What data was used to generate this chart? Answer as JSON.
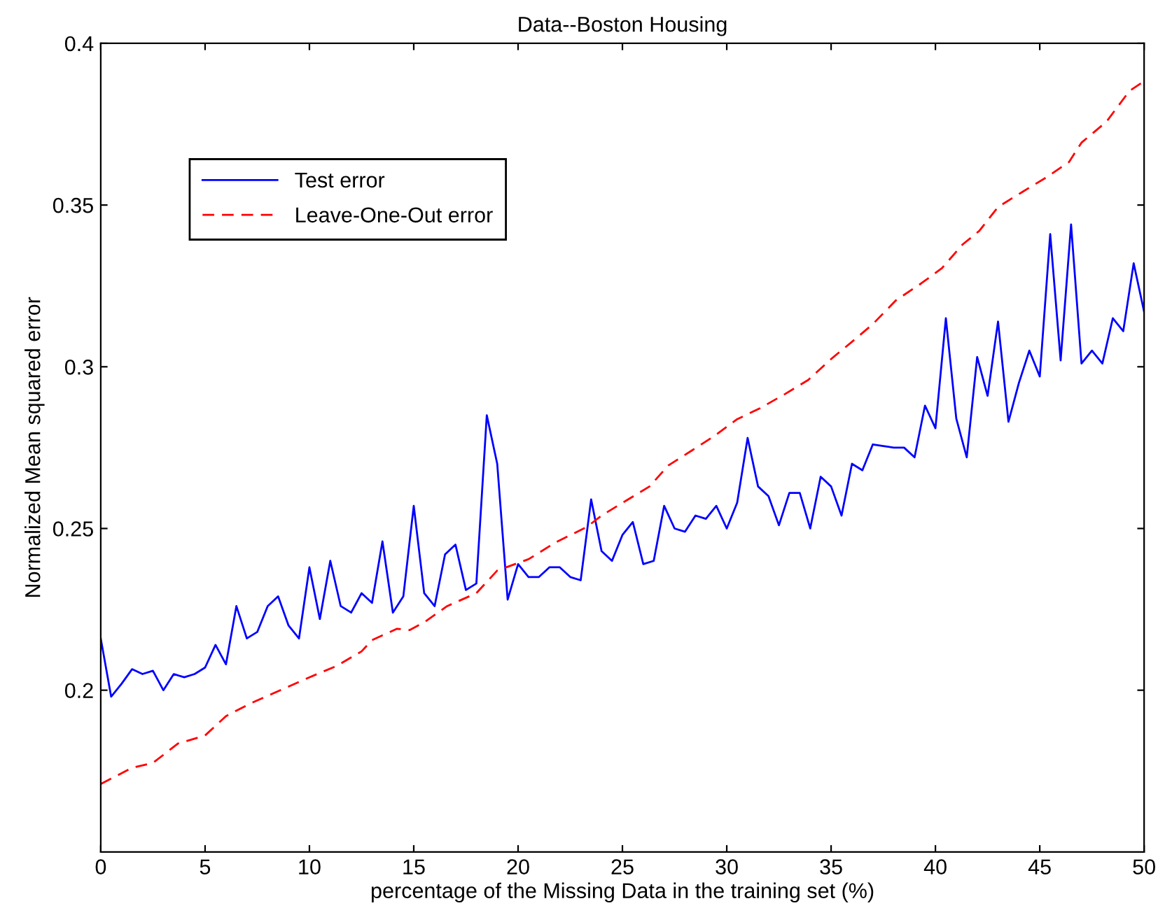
{
  "chart_data": {
    "type": "line",
    "title": "Data--Boston Housing",
    "xlabel": "percentage of the Missing Data in the training set (%)",
    "ylabel": "Normalized Mean squared error",
    "xlim": [
      0,
      50
    ],
    "ylim": [
      0.15,
      0.4
    ],
    "xticks": [
      0,
      5,
      10,
      15,
      20,
      25,
      30,
      35,
      40,
      45,
      50
    ],
    "yticks": [
      0.2,
      0.25,
      0.3,
      0.35,
      0.4
    ],
    "grid": false,
    "legend": "top left",
    "marker": "none",
    "series": [
      {
        "name": "Test error",
        "color": "#0000ff",
        "line_style": "solid",
        "x": [
          0,
          0.5,
          1,
          1.5,
          2,
          2.5,
          3,
          3.5,
          4,
          4.5,
          5,
          5.5,
          6,
          6.5,
          7,
          7.5,
          8,
          8.5,
          9,
          9.5,
          10,
          10.5,
          11,
          11.5,
          12,
          12.5,
          13,
          13.5,
          14,
          14.5,
          15,
          15.5,
          16,
          16.5,
          17,
          17.5,
          18,
          18.5,
          19,
          19.5,
          20,
          20.5,
          21,
          21.5,
          22,
          22.5,
          23,
          23.5,
          24,
          24.5,
          25,
          25.5,
          26,
          26.5,
          27,
          27.5,
          28,
          28.5,
          29,
          29.5,
          30,
          30.5,
          31,
          31.5,
          32,
          32.5,
          33,
          33.5,
          34,
          34.5,
          35,
          35.5,
          36,
          36.5,
          37,
          37.5,
          38,
          38.5,
          39,
          39.5,
          40,
          40.5,
          41,
          41.5,
          42,
          42.5,
          43,
          43.5,
          44,
          44.5,
          45,
          45.5,
          46,
          46.5,
          47,
          47.5,
          48,
          48.5,
          49,
          49.5,
          50
        ],
        "values": [
          0.216,
          0.198,
          0.202,
          0.2065,
          0.205,
          0.206,
          0.2,
          0.205,
          0.204,
          0.205,
          0.207,
          0.214,
          0.208,
          0.226,
          0.216,
          0.218,
          0.226,
          0.229,
          0.22,
          0.216,
          0.238,
          0.222,
          0.24,
          0.226,
          0.224,
          0.23,
          0.227,
          0.246,
          0.224,
          0.229,
          0.257,
          0.23,
          0.226,
          0.242,
          0.245,
          0.231,
          0.233,
          0.285,
          0.27,
          0.228,
          0.239,
          0.235,
          0.235,
          0.238,
          0.238,
          0.235,
          0.234,
          0.259,
          0.243,
          0.24,
          0.248,
          0.252,
          0.239,
          0.24,
          0.257,
          0.25,
          0.249,
          0.254,
          0.253,
          0.257,
          0.25,
          0.258,
          0.278,
          0.263,
          0.26,
          0.251,
          0.261,
          0.261,
          0.25,
          0.266,
          0.263,
          0.254,
          0.27,
          0.268,
          0.276,
          0.2755,
          0.275,
          0.275,
          0.272,
          0.288,
          0.281,
          0.315,
          0.284,
          0.272,
          0.303,
          0.291,
          0.314,
          0.283,
          0.295,
          0.305,
          0.297,
          0.341,
          0.302,
          0.344,
          0.301,
          0.305,
          0.301,
          0.315,
          0.311,
          0.332,
          0.317
        ]
      },
      {
        "name": "Leave-One-Out error",
        "color": "#ff0000",
        "line_style": "dashed",
        "x": [
          0,
          1.5,
          2.5,
          3.7,
          5,
          6,
          7.2,
          8.6,
          10,
          11.3,
          12.5,
          13,
          14.2,
          14.8,
          15.5,
          16.6,
          18,
          19,
          20.5,
          21.8,
          23.3,
          24,
          25.2,
          26.3,
          27.2,
          28.3,
          29.4,
          30.5,
          31.6,
          32.8,
          33.9,
          35,
          36.2,
          37,
          38.1,
          39.3,
          40.3,
          41.3,
          42.1,
          43,
          44.2,
          45.3,
          46.4,
          47,
          48.2,
          49.3,
          50
        ],
        "values": [
          0.171,
          0.176,
          0.1775,
          0.1835,
          0.186,
          0.192,
          0.196,
          0.2,
          0.204,
          0.2075,
          0.212,
          0.2155,
          0.219,
          0.2186,
          0.221,
          0.226,
          0.23,
          0.237,
          0.2405,
          0.2457,
          0.2505,
          0.254,
          0.2587,
          0.263,
          0.2695,
          0.274,
          0.2786,
          0.2838,
          0.2872,
          0.2916,
          0.2959,
          0.3024,
          0.3088,
          0.3132,
          0.3205,
          0.3257,
          0.3304,
          0.3378,
          0.342,
          0.3494,
          0.3542,
          0.3585,
          0.3633,
          0.3693,
          0.3758,
          0.3853,
          0.3883
        ]
      }
    ]
  }
}
